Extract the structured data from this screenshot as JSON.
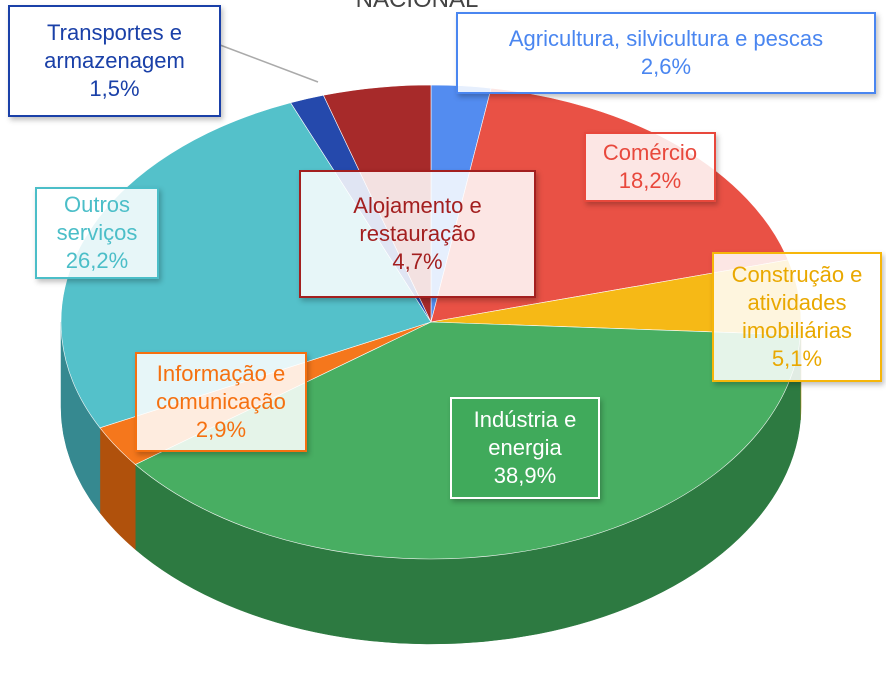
{
  "chart_data": {
    "type": "pie3d",
    "title": "NACIONAL",
    "categories": [
      "Agricultura, silvicultura e pescas",
      "Comércio",
      "Construção e atividades imobiliárias",
      "Indústria e energia",
      "Informação e comunicação",
      "Outros serviços",
      "Transportes e armazenagem",
      "Alojamento e restauração"
    ],
    "values": [
      2.6,
      18.2,
      5.1,
      38.9,
      2.9,
      26.2,
      1.5,
      4.7
    ],
    "value_labels": [
      "2,6%",
      "18,2%",
      "5,1%",
      "38,9%",
      "2,9%",
      "26,2%",
      "1,5%",
      "4,7%"
    ],
    "colors": [
      "#4a86f0",
      "#e8483c",
      "#f6b60a",
      "#3faa5a",
      "#f57010",
      "#4bbec8",
      "#1a40a8",
      "#a31f1f"
    ]
  }
}
